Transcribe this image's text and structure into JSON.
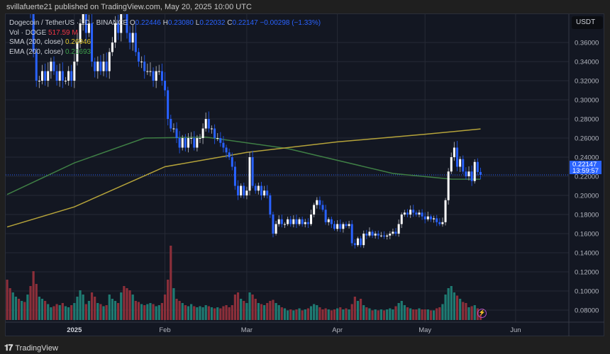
{
  "header": {
    "published": "svillafuerte21 published on TradingView.com, May 20, 2025 10:00 UTC"
  },
  "legend": {
    "symbol": "Dogecoin / TetherUS · 1D · BINANCE",
    "open_label": "O",
    "open": "0.22446",
    "high_label": "H",
    "high": "0.23080",
    "low_label": "L",
    "low": "0.22032",
    "close_label": "C",
    "close": "0.22147",
    "change": "−0.00298 (−1.33%)",
    "vol_label": "Vol · DOGE",
    "vol_value": "517.59 M",
    "sma_label": "SMA (200, close)",
    "sma_value": "0.26946",
    "ema_label": "EMA (200, close)",
    "ema_value": "0.21693"
  },
  "price_axis": {
    "currency": "USDT",
    "last_price": "0.22147",
    "countdown": "13:59:57"
  },
  "footer": {
    "brand": "TradingView",
    "logo_text": "17"
  },
  "colors": {
    "up_candle": "#ffffff",
    "down_candle": "#2962ff",
    "vol_up": "#1f7a72",
    "vol_down": "#8c2f3a",
    "sma": "#b5a33a",
    "ema": "#3f7f45",
    "accent": "#2962ff",
    "background": "#131722"
  },
  "chart_data": {
    "type": "candlestick",
    "title": "Dogecoin / TetherUS",
    "start_date": "2024-12-09",
    "end_date": "2025-05-20",
    "ylim": [
      0.07,
      0.37
    ],
    "y_ticks": [
      "0.36000",
      "0.34000",
      "0.32000",
      "0.30000",
      "0.28000",
      "0.26000",
      "0.24000",
      "0.22000",
      "0.20000",
      "0.18000",
      "0.16000",
      "0.14000",
      "0.12000",
      "0.10000",
      "0.08000"
    ],
    "x_ticks": [
      {
        "label": "2025",
        "date": "2025-01-01"
      },
      {
        "label": "Feb",
        "date": "2025-02-01"
      },
      {
        "label": "Mar",
        "date": "2025-03-01"
      },
      {
        "label": "Apr",
        "date": "2025-04-01"
      },
      {
        "label": "May",
        "date": "2025-05-01"
      },
      {
        "label": "Jun",
        "date": "2025-06-01"
      }
    ],
    "closes": [
      0.42,
      0.4,
      0.41,
      0.41,
      0.4,
      0.41,
      0.4,
      0.4,
      0.39,
      0.35,
      0.32,
      0.32,
      0.33,
      0.32,
      0.33,
      0.34,
      0.33,
      0.32,
      0.33,
      0.32,
      0.32,
      0.33,
      0.32,
      0.34,
      0.36,
      0.38,
      0.39,
      0.37,
      0.38,
      0.34,
      0.33,
      0.34,
      0.33,
      0.34,
      0.33,
      0.35,
      0.36,
      0.38,
      0.37,
      0.4,
      0.39,
      0.37,
      0.36,
      0.37,
      0.35,
      0.34,
      0.34,
      0.33,
      0.33,
      0.33,
      0.32,
      0.33,
      0.33,
      0.32,
      0.31,
      0.28,
      0.27,
      0.27,
      0.26,
      0.25,
      0.26,
      0.25,
      0.26,
      0.26,
      0.25,
      0.26,
      0.26,
      0.27,
      0.28,
      0.27,
      0.27,
      0.26,
      0.26,
      0.255,
      0.25,
      0.245,
      0.24,
      0.23,
      0.21,
      0.2,
      0.21,
      0.2,
      0.205,
      0.24,
      0.21,
      0.205,
      0.21,
      0.2,
      0.205,
      0.2,
      0.18,
      0.16,
      0.17,
      0.175,
      0.17,
      0.17,
      0.175,
      0.17,
      0.175,
      0.17,
      0.175,
      0.17,
      0.172,
      0.17,
      0.18,
      0.19,
      0.195,
      0.19,
      0.185,
      0.172,
      0.175,
      0.17,
      0.165,
      0.17,
      0.165,
      0.17,
      0.168,
      0.17,
      0.15,
      0.148,
      0.155,
      0.148,
      0.16,
      0.158,
      0.162,
      0.158,
      0.16,
      0.158,
      0.158,
      0.157,
      0.158,
      0.16,
      0.162,
      0.16,
      0.17,
      0.18,
      0.182,
      0.18,
      0.185,
      0.182,
      0.18,
      0.182,
      0.178,
      0.175,
      0.178,
      0.175,
      0.176,
      0.172,
      0.17,
      0.172,
      0.195,
      0.225,
      0.24,
      0.25,
      0.23,
      0.238,
      0.225,
      0.22,
      0.225,
      0.215,
      0.235,
      0.2245,
      0.22147
    ],
    "volumes_millions": [
      3800,
      3000,
      2600,
      2200,
      2000,
      1800,
      1700,
      2400,
      3200,
      4600,
      3400,
      2200,
      2000,
      1800,
      1500,
      1200,
      1300,
      1500,
      1400,
      1600,
      1300,
      1200,
      1400,
      1600,
      2200,
      2800,
      2400,
      1500,
      1800,
      2600,
      2200,
      1600,
      1500,
      1300,
      1400,
      2400,
      2000,
      1800,
      1600,
      2600,
      3200,
      3000,
      2800,
      2400,
      1800,
      1700,
      1500,
      1400,
      1500,
      1600,
      1500,
      1300,
      1400,
      1600,
      2400,
      3800,
      7000,
      3000,
      2000,
      1800,
      1600,
      1400,
      1300,
      1500,
      1300,
      1200,
      1300,
      1200,
      1400,
      1300,
      1200,
      1100,
      1200,
      1100,
      1300,
      1400,
      1200,
      1400,
      2400,
      2600,
      2000,
      1800,
      1600,
      2600,
      2400,
      2000,
      1600,
      1500,
      1400,
      1600,
      1800,
      1900,
      1600,
      1400,
      1200,
      1100,
      900,
      1000,
      900,
      1000,
      1100,
      900,
      1000,
      1100,
      1300,
      1500,
      1400,
      1200,
      1000,
      1100,
      1000,
      900,
      1000,
      1100,
      1200,
      1000,
      1100,
      1000,
      1500,
      2200,
      1800,
      2000,
      1400,
      1200,
      1100,
      900,
      1000,
      900,
      1000,
      900,
      1000,
      1100,
      1000,
      1300,
      1600,
      1800,
      1400,
      1200,
      1100,
      1000,
      1000,
      1100,
      1000,
      1000,
      1000,
      900,
      900,
      1100,
      1200,
      1500,
      2400,
      3000,
      3200,
      2600,
      2300,
      2000,
      1700,
      1600,
      1200,
      1300,
      1400,
      1100,
      517.59
    ],
    "sma_200": [
      {
        "date": "2024-12-09",
        "value": 0.167
      },
      {
        "date": "2025-01-01",
        "value": 0.188
      },
      {
        "date": "2025-02-01",
        "value": 0.23
      },
      {
        "date": "2025-03-01",
        "value": 0.245
      },
      {
        "date": "2025-04-01",
        "value": 0.256
      },
      {
        "date": "2025-05-01",
        "value": 0.264
      },
      {
        "date": "2025-05-20",
        "value": 0.2695
      }
    ],
    "ema_200": [
      {
        "date": "2024-12-09",
        "value": 0.201
      },
      {
        "date": "2025-01-01",
        "value": 0.234
      },
      {
        "date": "2025-01-25",
        "value": 0.26
      },
      {
        "date": "2025-02-15",
        "value": 0.261
      },
      {
        "date": "2025-03-15",
        "value": 0.249
      },
      {
        "date": "2025-04-20",
        "value": 0.223
      },
      {
        "date": "2025-05-10",
        "value": 0.217
      },
      {
        "date": "2025-05-20",
        "value": 0.2169
      }
    ]
  }
}
